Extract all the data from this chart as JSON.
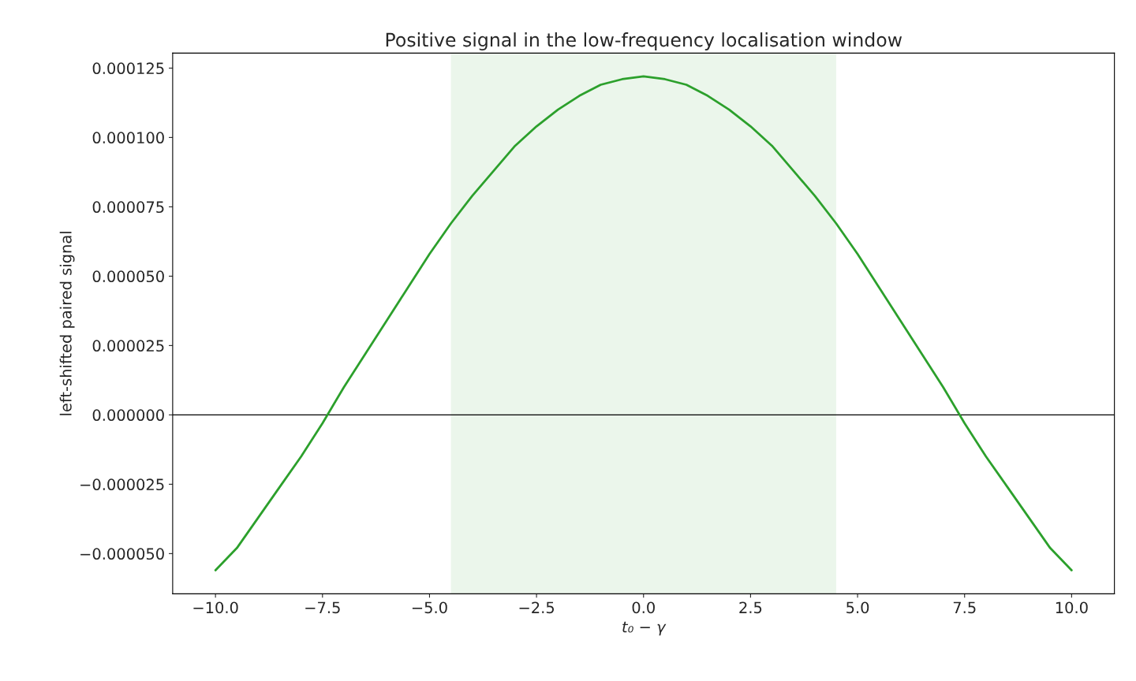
{
  "chart_data": {
    "type": "line",
    "title": "Positive signal in the low-frequency localisation window",
    "xlabel": "t₀ − γ",
    "ylabel": "left-shifted paired signal",
    "x": [
      -10,
      -9.5,
      -9,
      -8.5,
      -8,
      -7.5,
      -7,
      -6.5,
      -6,
      -5.5,
      -5,
      -4.5,
      -4,
      -3.5,
      -3,
      -2.5,
      -2,
      -1.5,
      -1,
      -0.5,
      0,
      0.5,
      1,
      1.5,
      2,
      2.5,
      3,
      3.5,
      4,
      4.5,
      5,
      5.5,
      6,
      6.5,
      7,
      7.5,
      8,
      8.5,
      9,
      9.5,
      10
    ],
    "series": [
      {
        "color": "#2ca02c",
        "values": [
          -5.6e-05,
          -4.8e-05,
          -3.7e-05,
          -2.6e-05,
          -1.5e-05,
          -3e-06,
          1e-05,
          2.2e-05,
          3.4e-05,
          4.6e-05,
          5.8e-05,
          6.9e-05,
          7.9e-05,
          8.8e-05,
          9.7e-05,
          0.000104,
          0.00011,
          0.000115,
          0.000119,
          0.000121,
          0.000122,
          0.000121,
          0.000119,
          0.000115,
          0.00011,
          0.000104,
          9.7e-05,
          8.8e-05,
          7.9e-05,
          6.9e-05,
          5.8e-05,
          4.6e-05,
          3.4e-05,
          2.2e-05,
          1e-05,
          -3e-06,
          -1.5e-05,
          -2.6e-05,
          -3.7e-05,
          -4.8e-05,
          -5.6e-05
        ]
      }
    ],
    "xlim": [
      -11,
      11
    ],
    "ylim": [
      -6.45e-05,
      0.0001304
    ],
    "xticks": [
      {
        "value": -10,
        "label": "−10.0"
      },
      {
        "value": -7.5,
        "label": "−7.5"
      },
      {
        "value": -5,
        "label": "−5.0"
      },
      {
        "value": -2.5,
        "label": "−2.5"
      },
      {
        "value": 0,
        "label": "0.0"
      },
      {
        "value": 2.5,
        "label": "2.5"
      },
      {
        "value": 5,
        "label": "5.0"
      },
      {
        "value": 7.5,
        "label": "7.5"
      },
      {
        "value": 10,
        "label": "10.0"
      }
    ],
    "yticks": [
      {
        "value": -5e-05,
        "label": "−0.000050"
      },
      {
        "value": -2.5e-05,
        "label": "−0.000025"
      },
      {
        "value": 0,
        "label": "0.000000"
      },
      {
        "value": 2.5e-05,
        "label": "0.000025"
      },
      {
        "value": 5e-05,
        "label": "0.000050"
      },
      {
        "value": 7.5e-05,
        "label": "0.000075"
      },
      {
        "value": 0.0001,
        "label": "0.000100"
      },
      {
        "value": 0.000125,
        "label": "0.000125"
      }
    ],
    "ref_lines": [
      {
        "axis": "y",
        "value": 0,
        "color": "#000000"
      }
    ],
    "bands": [
      {
        "axis": "x",
        "from": -4.5,
        "to": 4.5,
        "color": "#ebf6eb"
      }
    ],
    "grid": false
  }
}
